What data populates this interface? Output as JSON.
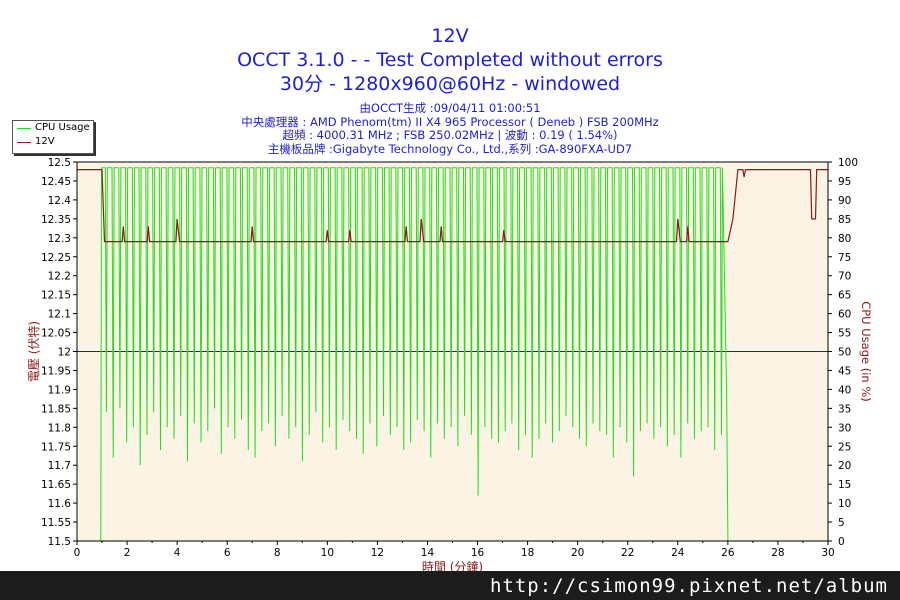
{
  "chart_data": {
    "type": "line",
    "title": "12V",
    "subtitle_lines": [
      "OCCT 3.1.0 -  - Test Completed without errors",
      "30分 - 1280x960@60Hz - windowed"
    ],
    "info_lines": [
      "由OCCT生成 :09/04/11 01:00:51",
      "中央處理器 : AMD Phenom(tm) II X4 965 Processor ( Deneb ) FSB 200MHz",
      "超頻 : 4000.31 MHz ; FSB 250.02MHz | 波動 : 0.19 ( 1.54%)",
      "主機板品牌 :Gigabyte Technology Co., Ltd.,系列 :GA-890FXA-UD7"
    ],
    "xlabel": "時間 (分鐘)",
    "ylabel_left": "電壓 (伏特)",
    "ylabel_right": "CPU Usage (in %)",
    "xlim": [
      0,
      30
    ],
    "ylim_left": [
      11.5,
      12.5
    ],
    "ylim_right": [
      0,
      100
    ],
    "x_ticks": [
      0,
      2,
      4,
      6,
      8,
      10,
      12,
      14,
      16,
      18,
      20,
      22,
      24,
      26,
      28,
      30
    ],
    "y_ticks_left": [
      "12.5",
      "12.45",
      "12.4",
      "12.35",
      "12.3",
      "12.25",
      "12.2",
      "12.15",
      "12.1",
      "12.05",
      "12",
      "11.95",
      "11.9",
      "11.85",
      "11.8",
      "11.75",
      "11.7",
      "11.65",
      "11.6",
      "11.55",
      "11.5"
    ],
    "y_ticks_right": [
      "100",
      "95",
      "90",
      "85",
      "80",
      "75",
      "70",
      "65",
      "60",
      "55",
      "50",
      "45",
      "40",
      "35",
      "30",
      "25",
      "20",
      "15",
      "10",
      "5",
      "0"
    ],
    "reference_line": {
      "axis": "left",
      "value": 12.0,
      "color": "#1a1ad6"
    },
    "grid": false,
    "legend_position": "top-left",
    "series": [
      {
        "name": "CPU Usage",
        "axis": "right",
        "color": "#22dd22",
        "summary": "0 until ~0.9 min, then oscillating between ~100 and ~10-35 about every 0.27 min until ~26 min, then 0",
        "start": 0.95,
        "end": 26.0,
        "period": 0.27,
        "high": 98.5,
        "low_values": [
          34,
          22,
          35,
          26,
          30,
          20,
          28,
          34,
          24,
          30,
          27,
          33,
          21,
          31,
          26,
          29,
          35,
          23,
          30,
          27,
          32,
          24,
          22,
          29,
          31,
          25,
          33,
          27,
          30,
          21,
          28,
          34,
          26,
          30,
          24,
          32,
          29,
          27,
          23,
          31,
          25,
          33,
          28,
          30,
          24,
          26,
          32,
          29,
          22,
          31,
          27,
          30,
          25,
          33,
          28,
          12,
          30,
          27,
          26,
          29,
          31,
          24,
          28,
          22,
          27,
          31,
          26,
          29,
          33,
          30,
          27,
          25,
          31,
          29,
          28,
          22,
          30,
          26,
          17,
          29,
          31,
          27,
          30,
          25,
          28,
          22,
          31,
          27,
          29,
          30,
          24,
          28,
          26
        ]
      },
      {
        "name": "12V",
        "axis": "left",
        "color": "#8b1a1a",
        "points": [
          [
            0,
            12.48
          ],
          [
            1.0,
            12.48
          ],
          [
            1.1,
            12.29
          ],
          [
            1.8,
            12.29
          ],
          [
            1.85,
            12.33
          ],
          [
            1.9,
            12.29
          ],
          [
            2.8,
            12.29
          ],
          [
            2.85,
            12.33
          ],
          [
            2.9,
            12.29
          ],
          [
            3.95,
            12.29
          ],
          [
            4.0,
            12.35
          ],
          [
            4.1,
            12.29
          ],
          [
            6.95,
            12.29
          ],
          [
            7.0,
            12.33
          ],
          [
            7.05,
            12.29
          ],
          [
            9.95,
            12.29
          ],
          [
            10.0,
            12.32
          ],
          [
            10.05,
            12.29
          ],
          [
            10.85,
            12.29
          ],
          [
            10.9,
            12.32
          ],
          [
            10.95,
            12.29
          ],
          [
            13.1,
            12.29
          ],
          [
            13.15,
            12.33
          ],
          [
            13.2,
            12.29
          ],
          [
            13.7,
            12.29
          ],
          [
            13.75,
            12.35
          ],
          [
            13.85,
            12.29
          ],
          [
            14.5,
            12.29
          ],
          [
            14.55,
            12.33
          ],
          [
            14.6,
            12.29
          ],
          [
            17.0,
            12.29
          ],
          [
            17.05,
            12.32
          ],
          [
            17.1,
            12.29
          ],
          [
            23.95,
            12.29
          ],
          [
            24.0,
            12.35
          ],
          [
            24.1,
            12.29
          ],
          [
            24.35,
            12.29
          ],
          [
            24.4,
            12.33
          ],
          [
            24.45,
            12.29
          ],
          [
            26.0,
            12.29
          ],
          [
            26.2,
            12.35
          ],
          [
            26.4,
            12.48
          ],
          [
            26.6,
            12.48
          ],
          [
            26.65,
            12.46
          ],
          [
            26.7,
            12.48
          ],
          [
            29.3,
            12.48
          ],
          [
            29.35,
            12.35
          ],
          [
            29.5,
            12.35
          ],
          [
            29.55,
            12.48
          ],
          [
            30.0,
            12.48
          ]
        ]
      }
    ]
  },
  "footer": {
    "watermark": "http://csimon99.pixnet.net/album"
  }
}
